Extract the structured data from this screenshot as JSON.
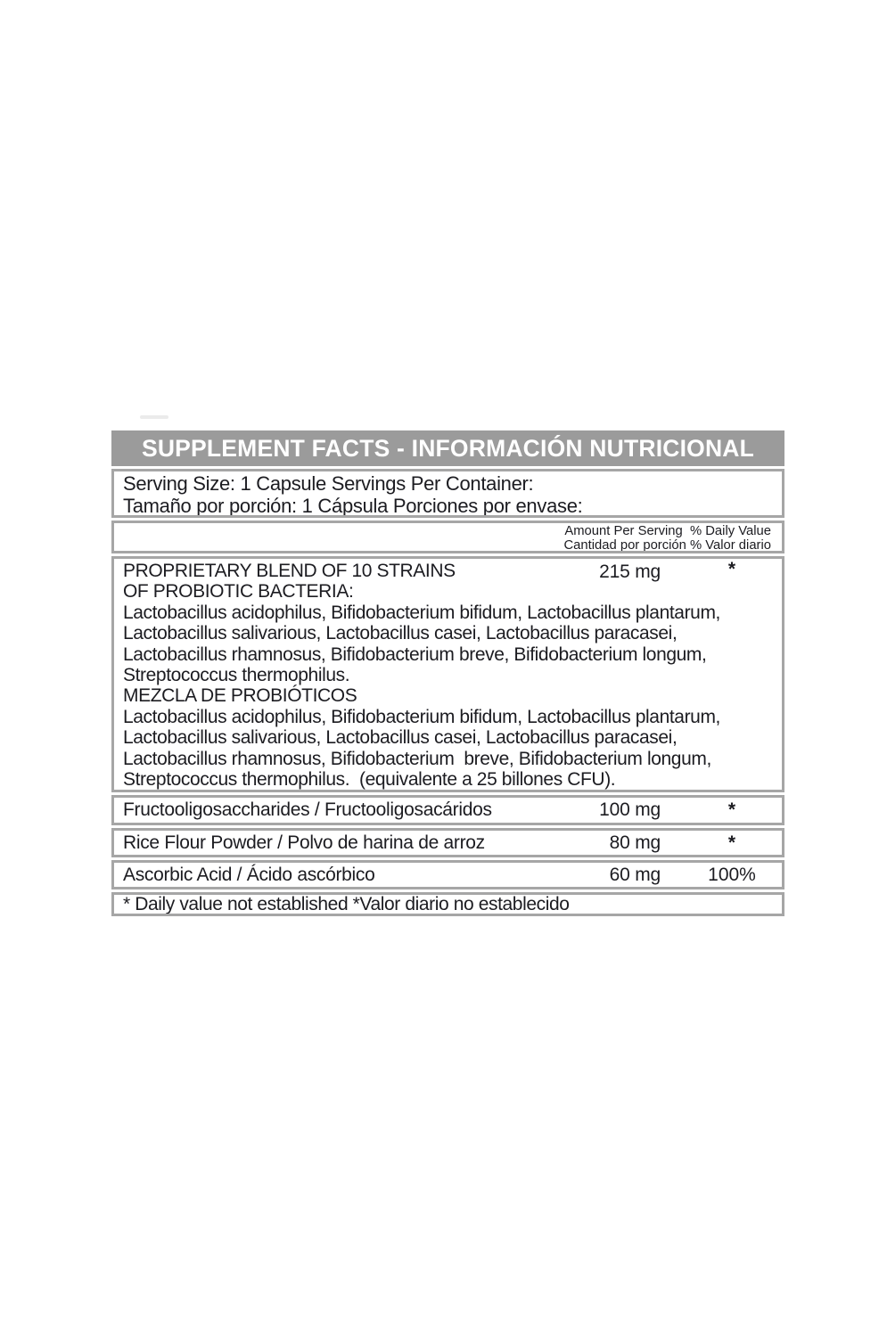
{
  "label": {
    "title": "SUPPLEMENT FACTS - INFORMACIÓN NUTRICIONAL",
    "serving": "Serving Size: 1 Capsule Servings Per Container:\nTamaño por porción: 1 Cápsula Porciones por envase:",
    "column_headers": "Amount Per Serving  % Daily Value\nCantidad por porción % Valor diario",
    "blend": {
      "title": "PROPRIETARY BLEND OF 10 STRAINS\nOF PROBIOTIC BACTERIA:",
      "amount": "215 mg",
      "daily_value": "*",
      "strains_en": "Lactobacillus acidophilus, Bifidobacterium bifidum, Lactobacillus plantarum,\nLactobacillus salivarious, Lactobacillus casei, Lactobacillus paracasei,\nLactobacillus rhamnosus, Bifidobacterium breve, Bifidobacterium longum,\nStreptococcus thermophilus.",
      "subtitle_es": "MEZCLA DE PROBIÓTICOS",
      "strains_es": "Lactobacillus acidophilus, Bifidobacterium bifidum, Lactobacillus plantarum,\nLactobacillus salivarious, Lactobacillus casei, Lactobacillus paracasei,\nLactobacillus rhamnosus, Bifidobacterium  breve, Bifidobacterium longum,\nStreptococcus thermophilus.  (equivalente a 25 billones CFU)."
    },
    "ingredients": [
      {
        "name": "Fructooligosaccharides / Fructooligosacáridos",
        "amount": "100 mg",
        "daily_value": "*"
      },
      {
        "name": "Rice Flour Powder / Polvo de harina de arroz",
        "amount": "80 mg",
        "daily_value": "*"
      },
      {
        "name": "Ascorbic Acid / Ácido ascórbico",
        "amount": "60 mg",
        "daily_value": "100%"
      }
    ],
    "footnote": "* Daily value not established *Valor diario no establecido",
    "colors": {
      "header_bg": "#9b9b9b",
      "border": "#a6a6a6",
      "text": "#1c1c21",
      "header_text": "#ffffff",
      "background": "#ffffff"
    }
  }
}
